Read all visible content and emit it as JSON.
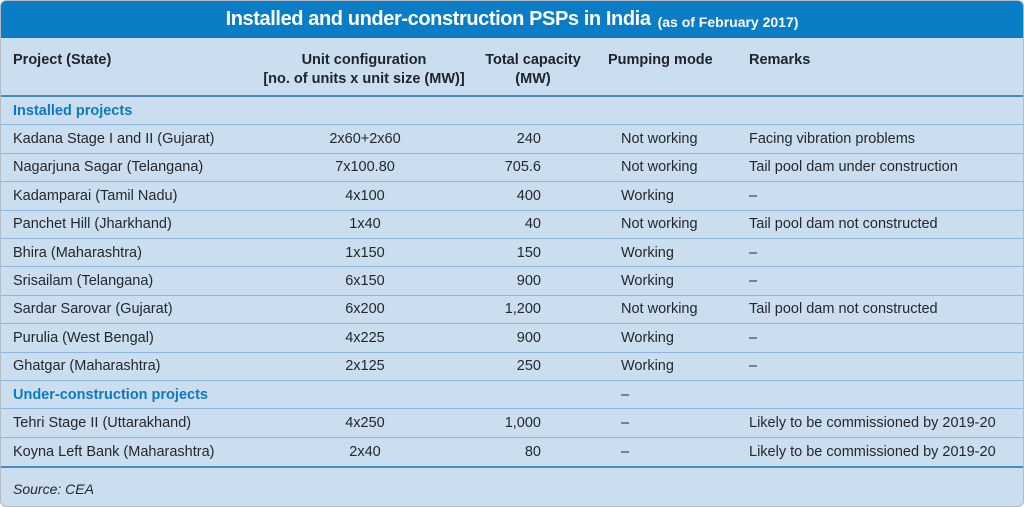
{
  "chart_data": {
    "type": "table",
    "title": {
      "main": "Installed and under-construction PSPs in India",
      "suffix": "(as of February 2017)"
    },
    "columns": [
      {
        "label": "Project (State)"
      },
      {
        "label": "Unit configuration",
        "sub": "[no. of units x unit size (MW)]"
      },
      {
        "label": "Total capacity",
        "sub": "(MW)"
      },
      {
        "label": "Pumping mode"
      },
      {
        "label": "Remarks"
      }
    ],
    "sections": [
      {
        "label": "Installed projects",
        "pumping_mode": "",
        "rows": [
          [
            "Kadana Stage I and II (Gujarat)",
            "2x60+2x60",
            "240",
            "Not working",
            "Facing vibration problems"
          ],
          [
            "Nagarjuna Sagar (Telangana)",
            "7x100.80",
            "705.6",
            "Not working",
            "Tail pool dam under construction"
          ],
          [
            "Kadamparai (Tamil Nadu)",
            "4x100",
            "400",
            "Working",
            "–"
          ],
          [
            "Panchet Hill (Jharkhand)",
            "1x40",
            "40",
            "Not working",
            "Tail pool dam not constructed"
          ],
          [
            "Bhira (Maharashtra)",
            "1x150",
            "150",
            "Working",
            "–"
          ],
          [
            "Srisailam (Telangana)",
            "6x150",
            "900",
            "Working",
            "–"
          ],
          [
            "Sardar Sarovar (Gujarat)",
            "6x200",
            "1,200",
            "Not working",
            "Tail pool dam not constructed"
          ],
          [
            "Purulia (West Bengal)",
            "4x225",
            "900",
            "Working",
            "–"
          ],
          [
            "Ghatgar (Maharashtra)",
            "2x125",
            "250",
            "Working",
            "–"
          ]
        ]
      },
      {
        "label": "Under-construction projects",
        "pumping_mode": "–",
        "rows": [
          [
            "Tehri Stage II (Uttarakhand)",
            "4x250",
            "1,000",
            "–",
            "Likely to be commissioned by 2019-20"
          ],
          [
            "Koyna Left Bank (Maharashtra)",
            "2x40",
            "80",
            "–",
            "Likely to be commissioned by 2019-20"
          ]
        ]
      }
    ],
    "source": "Source: CEA"
  },
  "colors": {
    "title_bar": "#0a7dc6",
    "panel_bg": "#cadeef",
    "section_text": "#0c7ac2",
    "rule": "#8fb6dc",
    "strong_rule": "#4a8ac4",
    "text": "#26272b",
    "head_text": "#20242c",
    "title_text": "#ffffff"
  }
}
